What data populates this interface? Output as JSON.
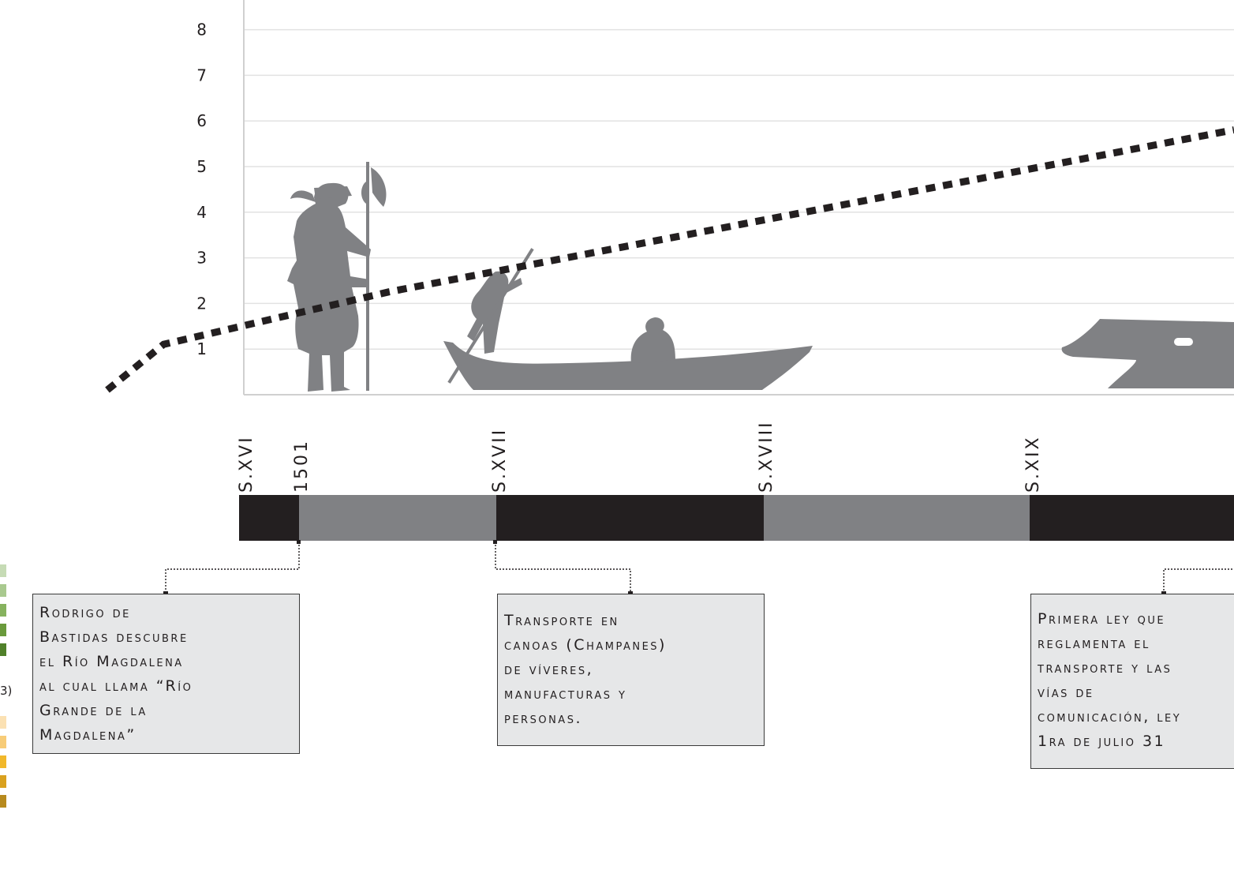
{
  "chart_data": {
    "type": "line",
    "y_ticks": [
      "1",
      "2",
      "3",
      "4",
      "5",
      "6",
      "7",
      "8"
    ],
    "ylim": [
      0,
      8.7
    ],
    "grid": true,
    "trend_line": {
      "style": "dotted",
      "points": [
        [
          0,
          0
        ],
        [
          1,
          1
        ],
        [
          5,
          2.15
        ],
        [
          20,
          5.7
        ]
      ]
    }
  },
  "timeline": {
    "centuries": [
      {
        "label": "S.XVI",
        "color": "#231f20"
      },
      {
        "label": "1501",
        "color": "#808184"
      },
      {
        "label": "S.XVII",
        "color": "#231f20"
      },
      {
        "label": "S.XVIII",
        "color": "#808184"
      },
      {
        "label": "S.XIX",
        "color": "#231f20"
      }
    ]
  },
  "notes": [
    {
      "text": "Rodrigo de\nBastidas descubre\nel Río Magdalena\nal cual llama “Río\nGrande de la\nMagdalena”"
    },
    {
      "text": "Transporte en\ncanoas (Champanes)\nde víveres,\nmanufacturas y\npersonas."
    },
    {
      "text": "Primera ley que\nreglamenta el\ntransporte y las\nvías de\ncomunicación, ley\n1ra de julio 31"
    }
  ],
  "side": {
    "partial_text": "3)",
    "swatches_green": [
      "#c6dbb5",
      "#a9c98f",
      "#86b25e",
      "#6a9a3c",
      "#50802a"
    ],
    "swatches_yellow": [
      "#fbe1b3",
      "#f7cc78",
      "#f1b82b",
      "#d9a11f",
      "#b78a1e"
    ]
  },
  "colors": {
    "silhouette": "#808184",
    "grid": "#e2e2e2",
    "trend": "#231f20"
  }
}
